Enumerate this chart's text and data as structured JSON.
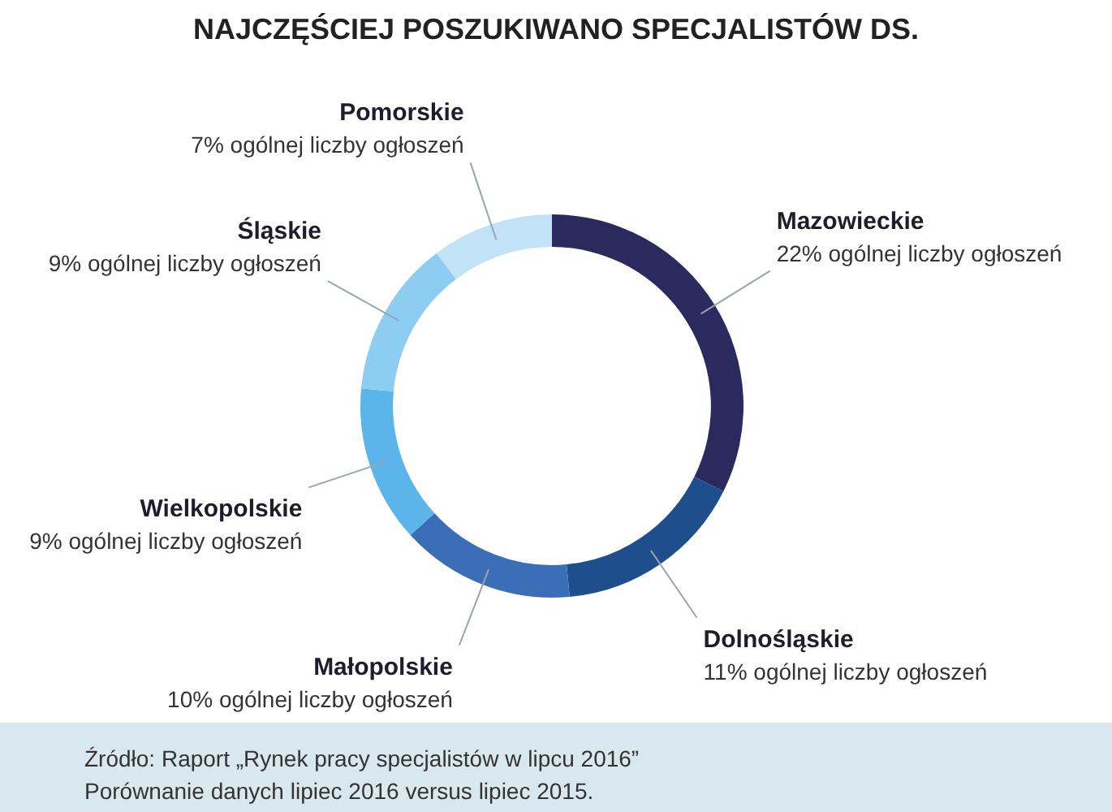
{
  "chart_data": {
    "type": "donut",
    "title": "NAJCZĘŚCIEJ POSZUKIWANO SPECJALISTÓW DS.",
    "categories": [
      "Mazowieckie",
      "Dolnośląskie",
      "Małopolskie",
      "Wielkopolskie",
      "Śląskie",
      "Pomorskie"
    ],
    "values": [
      22,
      11,
      10,
      9,
      9,
      7
    ],
    "colors": [
      "#2b2a5e",
      "#1f4e8c",
      "#3a6fb8",
      "#5bb5ea",
      "#8ecdf2",
      "#c2e2f8"
    ],
    "value_labels": [
      "22% ogólnej liczby ogłoszeń",
      "11% ogólnej liczby ogłoszeń",
      "10% ogólnej liczby ogłoszeń",
      "9% ogólnej liczby ogłoszeń",
      "9% ogólnej liczby ogłoszeń",
      "7% ogólnej liczby ogłoszeń"
    ],
    "annotations": [
      "Źródło: Raport „Rynek pracy specjalistów w lipcu 2016”",
      "Porównanie danych lipiec 2016 versus lipiec 2015."
    ]
  }
}
